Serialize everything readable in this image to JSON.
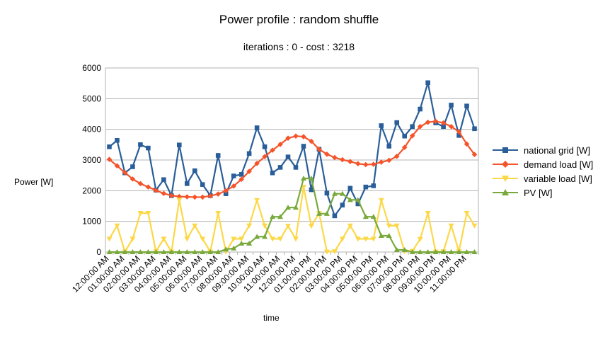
{
  "chart_data": {
    "type": "line",
    "title": "Power profile : random shuffle",
    "subtitle": "iterations : 0 - cost : 3218",
    "xlabel": "time",
    "ylabel": "Power [W]",
    "ylim": [
      0,
      6000
    ],
    "yticks": [
      0,
      1000,
      2000,
      3000,
      4000,
      5000,
      6000
    ],
    "grid": true,
    "legend_position": "right",
    "xtick_labels": [
      "12:00:00 AM",
      "01:00:00 AM",
      "02:00:00 AM",
      "03:00:00 AM",
      "04:00:00 AM",
      "05:00:00 AM",
      "06:00:00 AM",
      "07:00:00 AM",
      "08:00:00 AM",
      "09:00:00 AM",
      "10:00:00 AM",
      "11:00:00 AM",
      "12:00:00 PM",
      "01:00:00 PM",
      "02:00:00 PM",
      "03:00:00 PM",
      "04:00:00 PM",
      "05:00:00 PM",
      "06:00:00 PM",
      "07:00:00 PM",
      "08:00:00 PM",
      "09:00:00 PM",
      "10:00:00 PM",
      "11:00:00 PM"
    ],
    "x": [
      "12:00:00 AM",
      "12:30:00 AM",
      "01:00:00 AM",
      "01:30:00 AM",
      "02:00:00 AM",
      "02:30:00 AM",
      "03:00:00 AM",
      "03:30:00 AM",
      "04:00:00 AM",
      "04:30:00 AM",
      "05:00:00 AM",
      "05:30:00 AM",
      "06:00:00 AM",
      "06:30:00 AM",
      "07:00:00 AM",
      "07:30:00 AM",
      "08:00:00 AM",
      "08:30:00 AM",
      "09:00:00 AM",
      "09:30:00 AM",
      "10:00:00 AM",
      "10:30:00 AM",
      "11:00:00 AM",
      "11:30:00 AM",
      "12:00:00 PM",
      "12:30:00 PM",
      "01:00:00 PM",
      "01:30:00 PM",
      "02:00:00 PM",
      "02:30:00 PM",
      "03:00:00 PM",
      "03:30:00 PM",
      "04:00:00 PM",
      "04:30:00 PM",
      "05:00:00 PM",
      "05:30:00 PM",
      "06:00:00 PM",
      "06:30:00 PM",
      "07:00:00 PM",
      "07:30:00 PM",
      "08:00:00 PM",
      "08:30:00 PM",
      "09:00:00 PM",
      "09:30:00 PM",
      "10:00:00 PM",
      "10:30:00 PM",
      "11:00:00 PM",
      "11:30:00 PM"
    ],
    "series": [
      {
        "name": "national grid [W]",
        "color": "#2a5e99",
        "marker": "square",
        "values": [
          3430,
          3640,
          2580,
          2780,
          3500,
          3390,
          2020,
          2360,
          1840,
          3490,
          2230,
          2650,
          2200,
          1840,
          3150,
          1900,
          2480,
          2530,
          3210,
          4050,
          3430,
          2580,
          2760,
          3100,
          2760,
          3450,
          2030,
          3350,
          1920,
          1180,
          1530,
          2080,
          1570,
          2120,
          2160,
          4120,
          3450,
          4220,
          3780,
          4090,
          4660,
          5520,
          4210,
          4090,
          4790,
          3800,
          4760,
          4020
        ]
      },
      {
        "name": "demand load [W]",
        "color": "#f5542a",
        "marker": "diamond",
        "values": [
          3020,
          2810,
          2590,
          2380,
          2230,
          2120,
          2010,
          1910,
          1840,
          1810,
          1800,
          1790,
          1790,
          1830,
          1890,
          2000,
          2150,
          2370,
          2630,
          2890,
          3110,
          3320,
          3510,
          3710,
          3780,
          3760,
          3610,
          3350,
          3190,
          3080,
          3010,
          2950,
          2880,
          2850,
          2860,
          2930,
          2990,
          3120,
          3410,
          3790,
          4090,
          4230,
          4260,
          4210,
          4090,
          3920,
          3520,
          3180
        ]
      },
      {
        "name": "variable load [W]",
        "color": "#fcd848",
        "marker": "triangle-down",
        "values": [
          430,
          860,
          10,
          430,
          1270,
          1270,
          20,
          430,
          10,
          1700,
          430,
          860,
          430,
          10,
          1270,
          10,
          430,
          430,
          860,
          1690,
          860,
          430,
          430,
          850,
          430,
          2120,
          850,
          1270,
          10,
          20,
          430,
          860,
          430,
          430,
          430,
          1690,
          860,
          860,
          20,
          30,
          420,
          1270,
          10,
          20,
          860,
          20,
          1270,
          860
        ]
      },
      {
        "name": "PV [W]",
        "color": "#79a93c",
        "marker": "triangle-up",
        "values": [
          0,
          0,
          0,
          0,
          0,
          0,
          0,
          0,
          0,
          0,
          0,
          0,
          0,
          0,
          0,
          90,
          120,
          280,
          280,
          500,
          500,
          1150,
          1150,
          1450,
          1450,
          2400,
          2400,
          1250,
          1250,
          1900,
          1900,
          1700,
          1700,
          1150,
          1150,
          530,
          530,
          70,
          70,
          0,
          0,
          0,
          0,
          0,
          0,
          0,
          0,
          0
        ]
      }
    ]
  }
}
